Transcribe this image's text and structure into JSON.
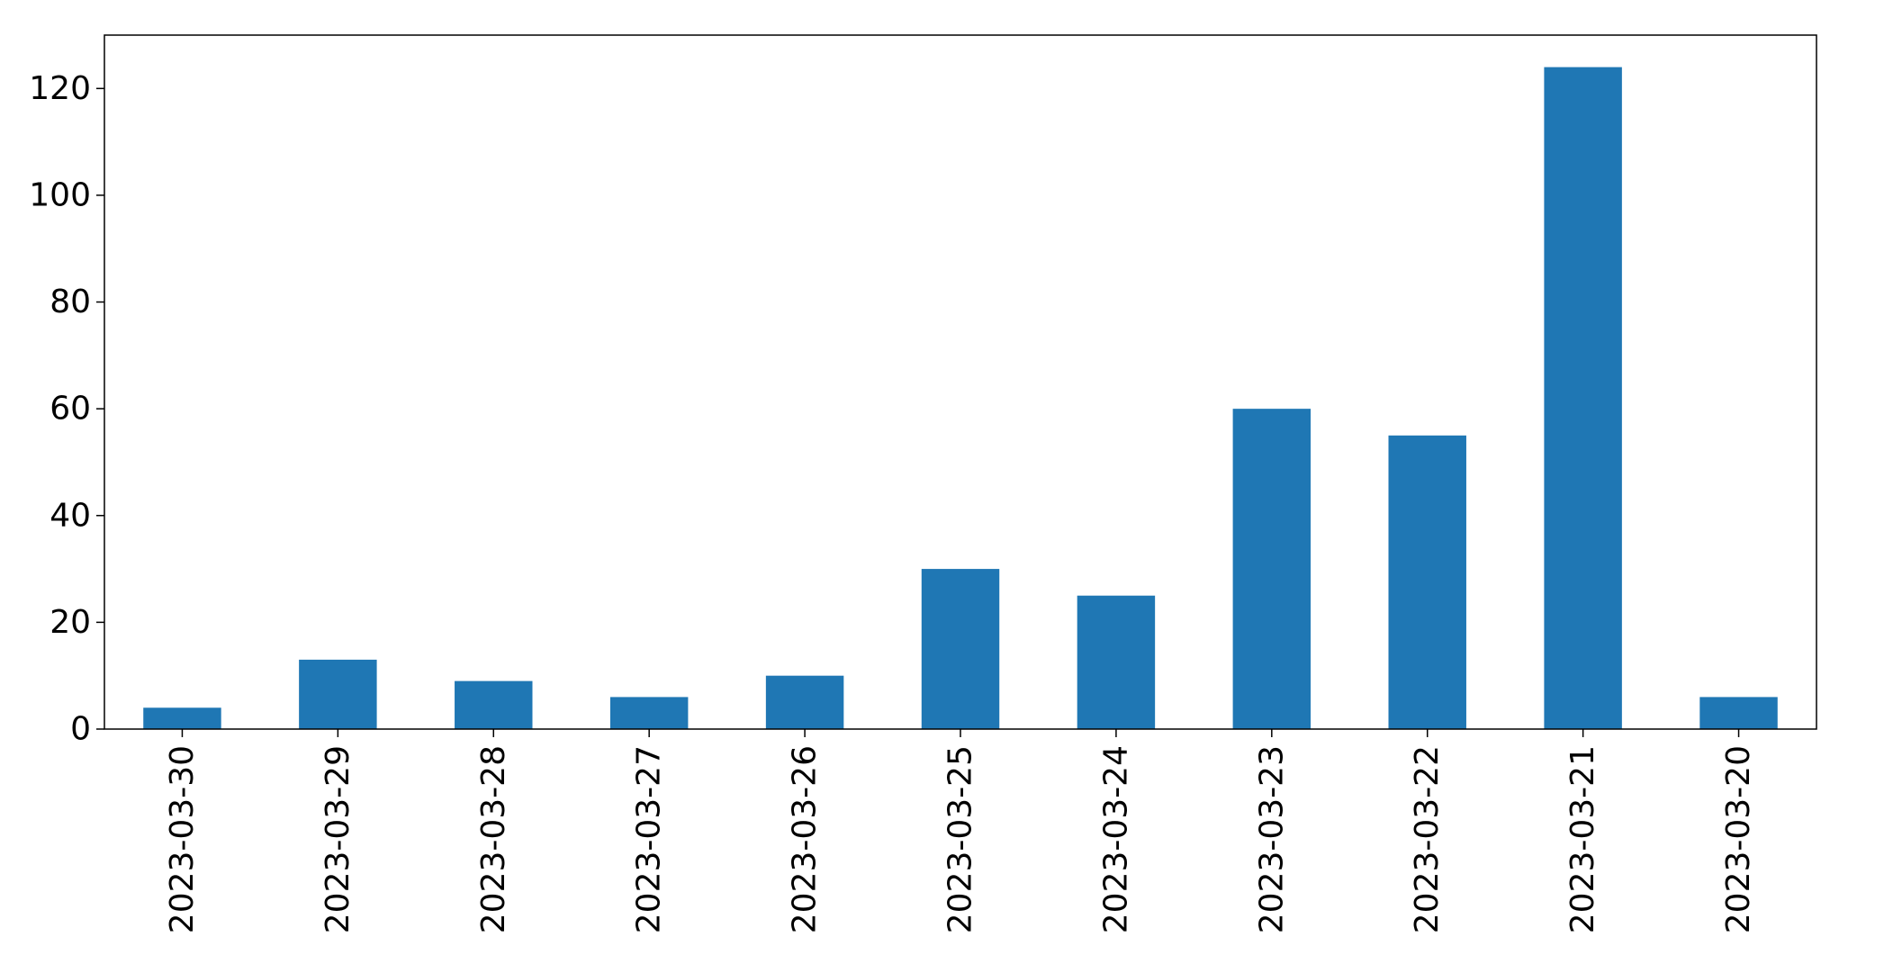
{
  "chart_data": {
    "type": "bar",
    "categories": [
      "2023-03-30",
      "2023-03-29",
      "2023-03-28",
      "2023-03-27",
      "2023-03-26",
      "2023-03-25",
      "2023-03-24",
      "2023-03-23",
      "2023-03-22",
      "2023-03-21",
      "2023-03-20"
    ],
    "values": [
      4,
      13,
      9,
      6,
      10,
      30,
      25,
      60,
      55,
      124,
      6
    ],
    "title": "",
    "xlabel": "",
    "ylabel": "",
    "ylim": [
      0,
      130
    ],
    "yticks": [
      0,
      20,
      40,
      60,
      80,
      100,
      120
    ],
    "bar_color": "#1f77b4",
    "grid": false,
    "legend": "none",
    "x_tick_rotation": "vertical"
  }
}
